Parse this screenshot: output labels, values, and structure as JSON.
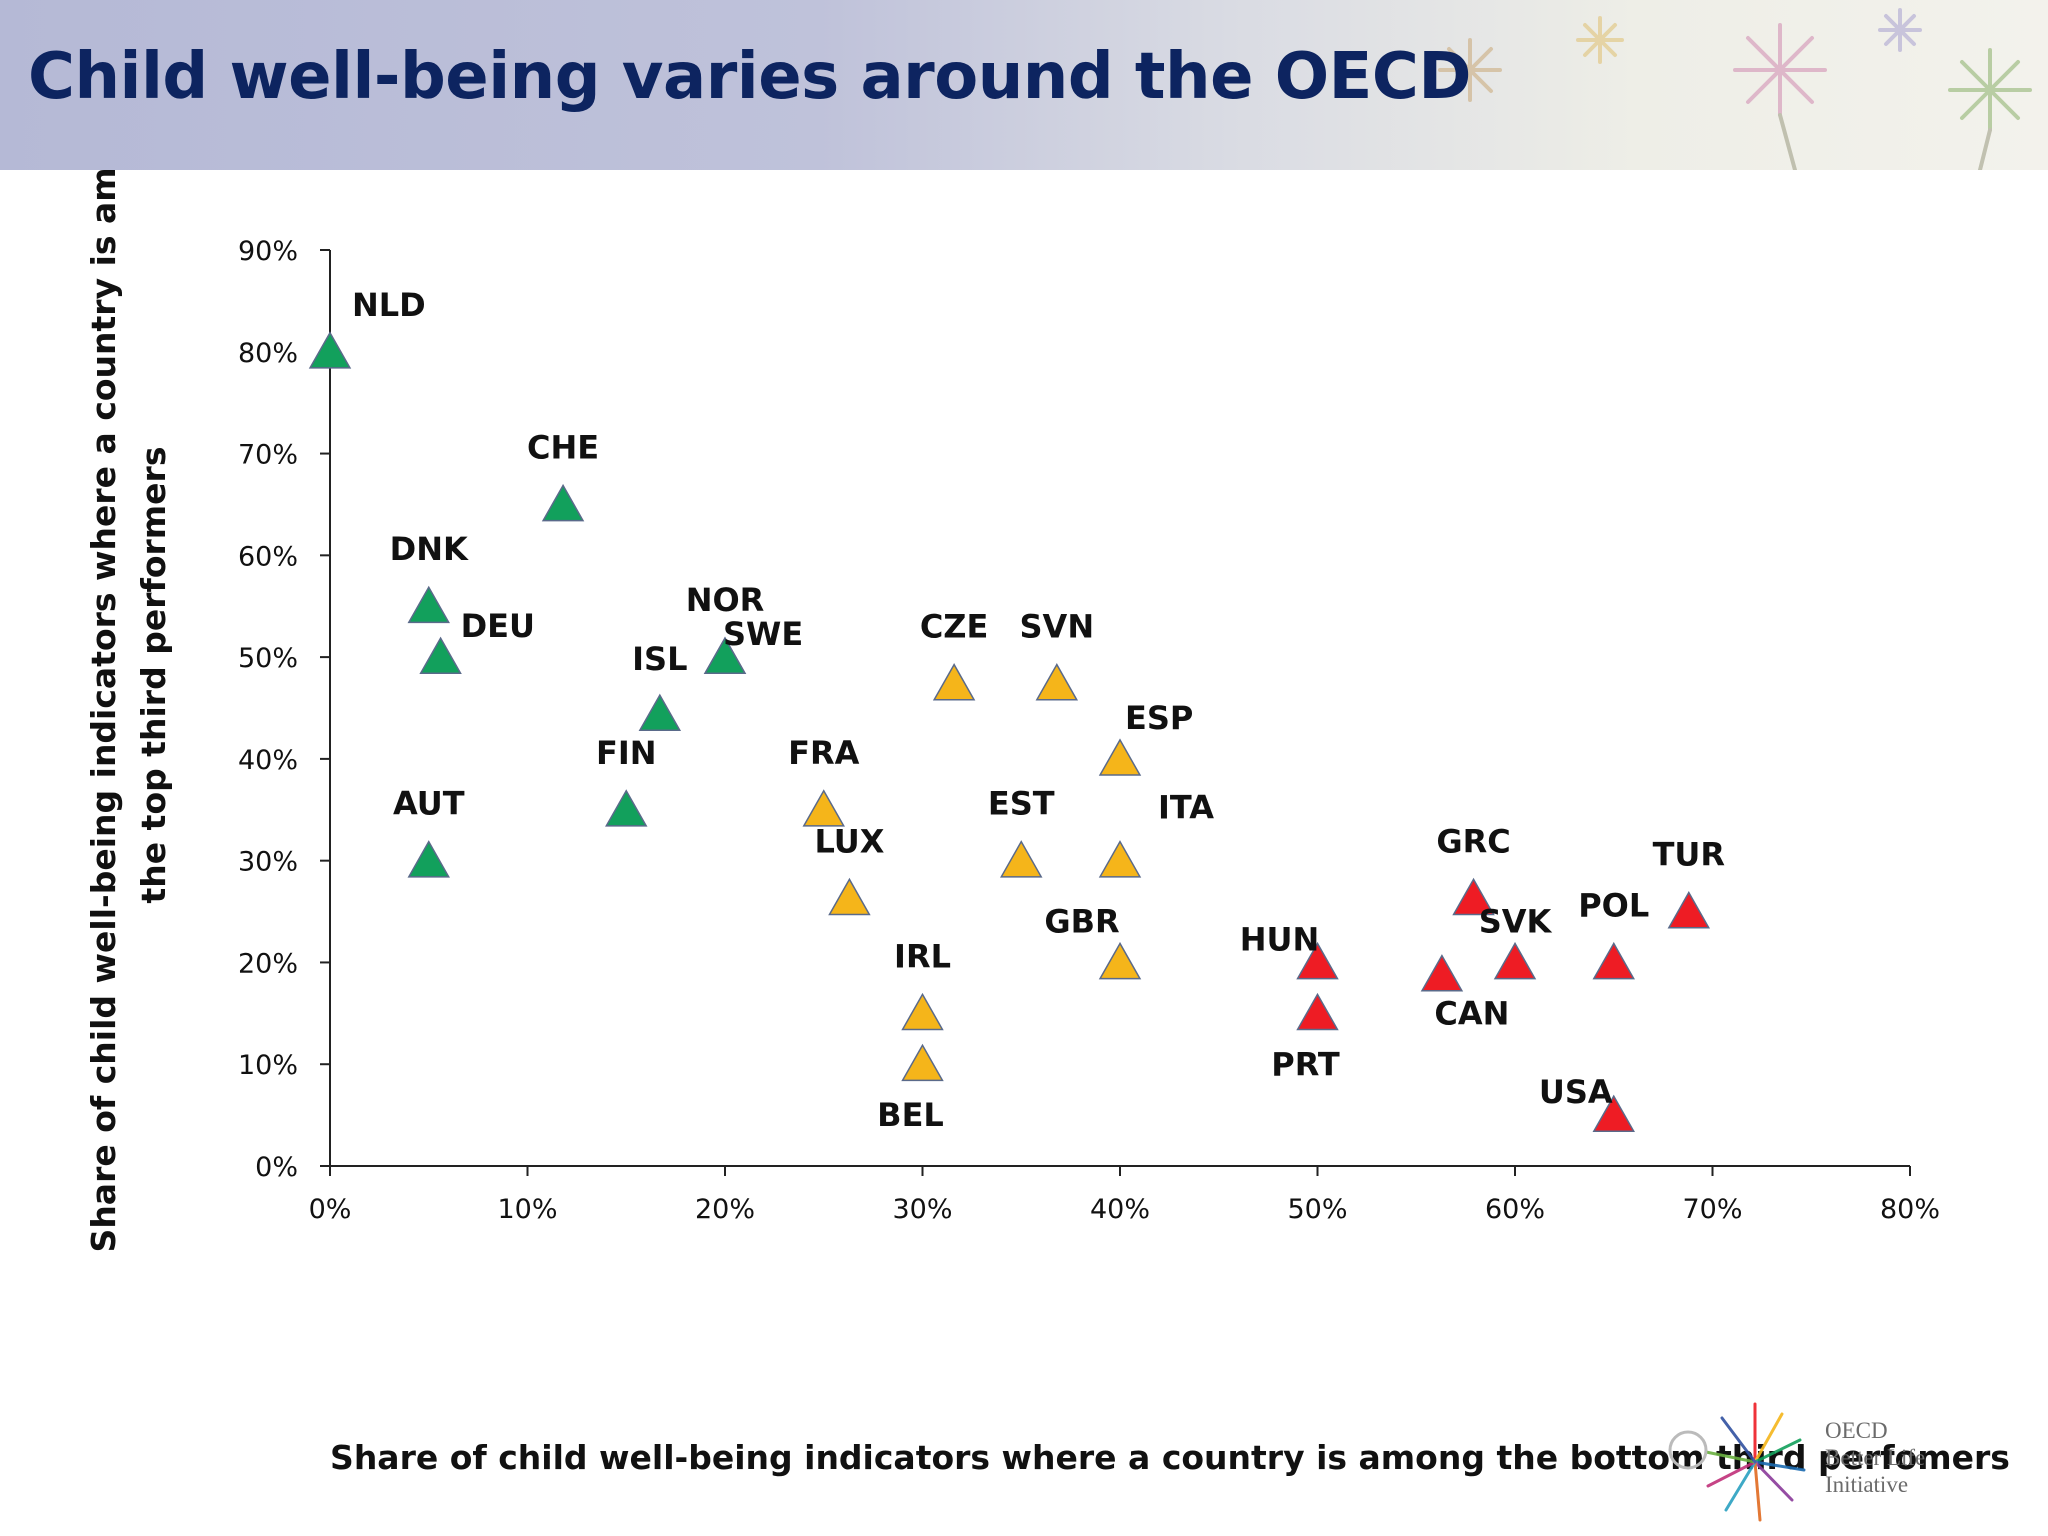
{
  "banner": {
    "title": "Child well-being varies around the OECD"
  },
  "logo": {
    "line1": "OECD",
    "line2": "Better Life",
    "line3": "Initiative"
  },
  "colors": {
    "top": "#12a05c",
    "middle": "#f5b51a",
    "bottom": "#ee1c24"
  },
  "chart_data": {
    "type": "scatter",
    "title": "",
    "xlabel": "Share of child well-being indicators where a country is among the bottom third perfomers",
    "ylabel": [
      "Share of child well-being indicators where a country is among",
      "the top third performers"
    ],
    "xlim": [
      0,
      80
    ],
    "ylim": [
      0,
      90
    ],
    "xticks": [
      "0%",
      "10%",
      "20%",
      "30%",
      "40%",
      "50%",
      "60%",
      "70%",
      "80%"
    ],
    "yticks": [
      "0%",
      "10%",
      "20%",
      "30%",
      "40%",
      "50%",
      "60%",
      "70%",
      "80%",
      "90%"
    ],
    "grid": false,
    "marker": "triangle",
    "points": [
      {
        "label": "NLD",
        "x": 0,
        "y": 80,
        "group": "top"
      },
      {
        "label": "CHE",
        "x": 11.8,
        "y": 65,
        "group": "top"
      },
      {
        "label": "DNK",
        "x": 5,
        "y": 55,
        "group": "top"
      },
      {
        "label": "DEU",
        "x": 5.6,
        "y": 50,
        "group": "top"
      },
      {
        "label": "NOR",
        "x": 20,
        "y": 50,
        "group": "top"
      },
      {
        "label": "SWE",
        "x": 20,
        "y": 50,
        "group": "top"
      },
      {
        "label": "ISL",
        "x": 16.7,
        "y": 44.4,
        "group": "top"
      },
      {
        "label": "FIN",
        "x": 15,
        "y": 35,
        "group": "top"
      },
      {
        "label": "AUT",
        "x": 5,
        "y": 30,
        "group": "top"
      },
      {
        "label": "CZE",
        "x": 31.6,
        "y": 47.4,
        "group": "middle"
      },
      {
        "label": "SVN",
        "x": 36.8,
        "y": 47.4,
        "group": "middle"
      },
      {
        "label": "ESP",
        "x": 40,
        "y": 40,
        "group": "middle"
      },
      {
        "label": "FRA",
        "x": 25,
        "y": 35,
        "group": "middle"
      },
      {
        "label": "EST",
        "x": 35,
        "y": 30,
        "group": "middle"
      },
      {
        "label": "ITA",
        "x": 40,
        "y": 30,
        "group": "middle"
      },
      {
        "label": "LUX",
        "x": 26.3,
        "y": 26.3,
        "group": "middle"
      },
      {
        "label": "GBR",
        "x": 40,
        "y": 20,
        "group": "middle"
      },
      {
        "label": "IRL",
        "x": 30,
        "y": 15,
        "group": "middle"
      },
      {
        "label": "BEL",
        "x": 30,
        "y": 10,
        "group": "middle"
      },
      {
        "label": "GRC",
        "x": 57.9,
        "y": 26.3,
        "group": "bottom"
      },
      {
        "label": "TUR",
        "x": 68.8,
        "y": 25,
        "group": "bottom"
      },
      {
        "label": "POL",
        "x": 65,
        "y": 20,
        "group": "bottom"
      },
      {
        "label": "SVK",
        "x": 60,
        "y": 20,
        "group": "bottom"
      },
      {
        "label": "HUN",
        "x": 50,
        "y": 20,
        "group": "bottom"
      },
      {
        "label": "CAN",
        "x": 56.3,
        "y": 18.8,
        "group": "bottom"
      },
      {
        "label": "PRT",
        "x": 50,
        "y": 15,
        "group": "bottom"
      },
      {
        "label": "USA",
        "x": 65,
        "y": 5,
        "group": "bottom"
      }
    ]
  }
}
